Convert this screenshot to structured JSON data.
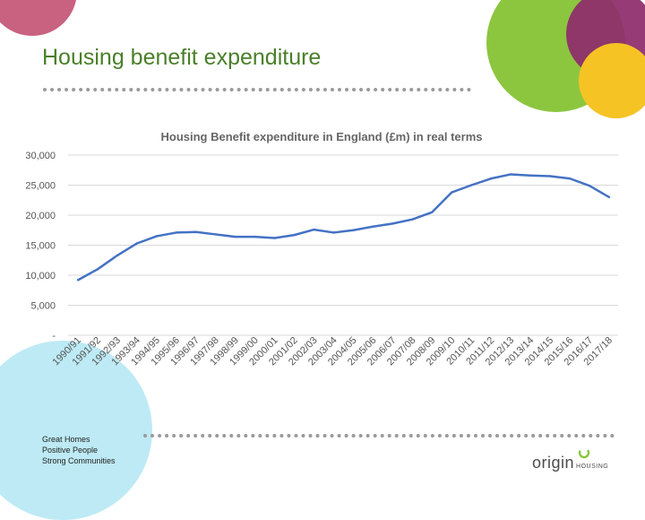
{
  "slide": {
    "title": "Housing benefit expenditure",
    "tagline": [
      "Great Homes",
      "Positive People",
      "Strong Communities"
    ],
    "logo": {
      "main": "origin",
      "sub": "HOUSING",
      "icon": "swirl-logo-icon"
    }
  },
  "colors": {
    "title": "#4a7f2a",
    "line": "#4472c4",
    "grid": "#d9d9d9",
    "circle_green": "#8cc63f",
    "circle_purple": "#8e2a6b",
    "circle_yellow": "#f6c325",
    "circle_cyan": "#bdeaf5"
  },
  "chart_data": {
    "type": "line",
    "title": "Housing Benefit expenditure in England (£m) in real terms",
    "xlabel": "",
    "ylabel": "",
    "ylim": [
      0,
      30000
    ],
    "grid": true,
    "y_ticks": [
      {
        "value": 30000,
        "label": "30,000"
      },
      {
        "value": 25000,
        "label": "25,000"
      },
      {
        "value": 20000,
        "label": "20,000"
      },
      {
        "value": 15000,
        "label": "15,000"
      },
      {
        "value": 10000,
        "label": "10,000"
      },
      {
        "value": 5000,
        "label": "5,000"
      },
      {
        "value": 0,
        "label": "-"
      }
    ],
    "categories": [
      "1990/91",
      "1991/92",
      "1992/93",
      "1993/94",
      "1994/95",
      "1995/96",
      "1996/97",
      "1997/98",
      "1998/99",
      "1999/00",
      "2000/01",
      "2001/02",
      "2002/03",
      "2003/04",
      "2004/05",
      "2005/06",
      "2006/07",
      "2007/08",
      "2008/09",
      "2009/10",
      "2010/11",
      "2011/12",
      "2012/13",
      "2013/14",
      "2014/15",
      "2015/16",
      "2016/17",
      "2017/18"
    ],
    "series": [
      {
        "name": "Housing Benefit expenditure",
        "values": [
          9200,
          11000,
          13300,
          15300,
          16500,
          17100,
          17200,
          16800,
          16400,
          16400,
          16200,
          16700,
          17600,
          17100,
          17500,
          18100,
          18600,
          19300,
          20500,
          23800,
          25000,
          26100,
          26800,
          26600,
          26500,
          26100,
          24900,
          23000
        ]
      }
    ]
  }
}
